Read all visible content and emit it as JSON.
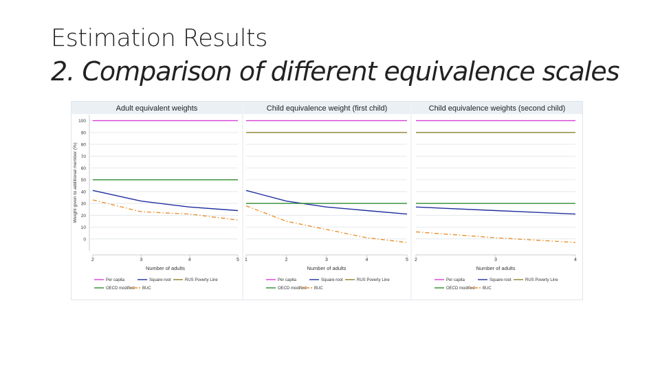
{
  "slide": {
    "title": "Estimation Results",
    "subtitle": "2. Comparison of different equivalence scales"
  },
  "colors": {
    "per_capita": "#d63fd6",
    "square_root": "#1f2d9e",
    "rus_poverty_line": "#8a7f2a",
    "oecd_modified": "#2e8b2e",
    "buc": "#e8891e",
    "panel_header_bg": "#eaf0f4",
    "grid": "#e3e8ec"
  },
  "chart_data": [
    {
      "type": "line",
      "title": "Adult equivalent weights",
      "xlabel": "Number of adults",
      "ylabel": "Weight given to additional member (%)",
      "x": [
        2,
        3,
        4,
        5
      ],
      "xlim": [
        2,
        5
      ],
      "ylim": [
        -10,
        105
      ],
      "yticks": [
        0,
        10,
        20,
        30,
        40,
        50,
        60,
        70,
        80,
        90,
        100
      ],
      "grid": true,
      "legend_position": "bottom",
      "legend": [
        "Per capita",
        "Square-root",
        "RUS Poverty Line",
        "OECD modified",
        "BUC"
      ],
      "series": [
        {
          "name": "Per capita",
          "values": [
            100,
            100,
            100,
            100
          ]
        },
        {
          "name": "Square-root",
          "values": [
            41,
            32,
            27,
            24
          ]
        },
        {
          "name": "OECD modified",
          "values": [
            50,
            50,
            50,
            50
          ]
        },
        {
          "name": "BUC",
          "values": [
            33,
            23,
            21,
            16
          ]
        }
      ]
    },
    {
      "type": "line",
      "title": "Child equivalence weight (first child)",
      "xlabel": "Number of adults",
      "x": [
        1,
        2,
        3,
        4,
        5
      ],
      "xlim": [
        1,
        5
      ],
      "ylim": [
        -10,
        105
      ],
      "grid": true,
      "legend_position": "bottom",
      "legend": [
        "Per capita",
        "Square-root",
        "RUS Poverty Line",
        "OECD modified",
        "BUC"
      ],
      "series": [
        {
          "name": "Per capita",
          "values": [
            100,
            100,
            100,
            100,
            100
          ]
        },
        {
          "name": "Square-root",
          "values": [
            41,
            32,
            27,
            24,
            21
          ]
        },
        {
          "name": "RUS Poverty Line",
          "values": [
            90,
            90,
            90,
            90,
            90
          ]
        },
        {
          "name": "OECD modified",
          "values": [
            30,
            30,
            30,
            30,
            30
          ]
        },
        {
          "name": "BUC",
          "values": [
            28,
            15,
            8,
            1,
            -3
          ]
        }
      ]
    },
    {
      "type": "line",
      "title": "Child equivalence weights (second child)",
      "xlabel": "Number of adults",
      "x": [
        2,
        3,
        4
      ],
      "xlim": [
        2,
        4
      ],
      "ylim": [
        -10,
        105
      ],
      "grid": true,
      "legend_position": "bottom",
      "legend": [
        "Per capita",
        "Square-root",
        "RUS Poverty Line",
        "OECD modified",
        "BUC"
      ],
      "series": [
        {
          "name": "Per capita",
          "values": [
            100,
            100,
            100
          ]
        },
        {
          "name": "Square-root",
          "values": [
            27,
            24,
            21
          ]
        },
        {
          "name": "RUS Poverty Line",
          "values": [
            90,
            90,
            90
          ]
        },
        {
          "name": "OECD modified",
          "values": [
            30,
            30,
            30
          ]
        },
        {
          "name": "BUC",
          "values": [
            6,
            1,
            -3
          ]
        }
      ]
    }
  ]
}
